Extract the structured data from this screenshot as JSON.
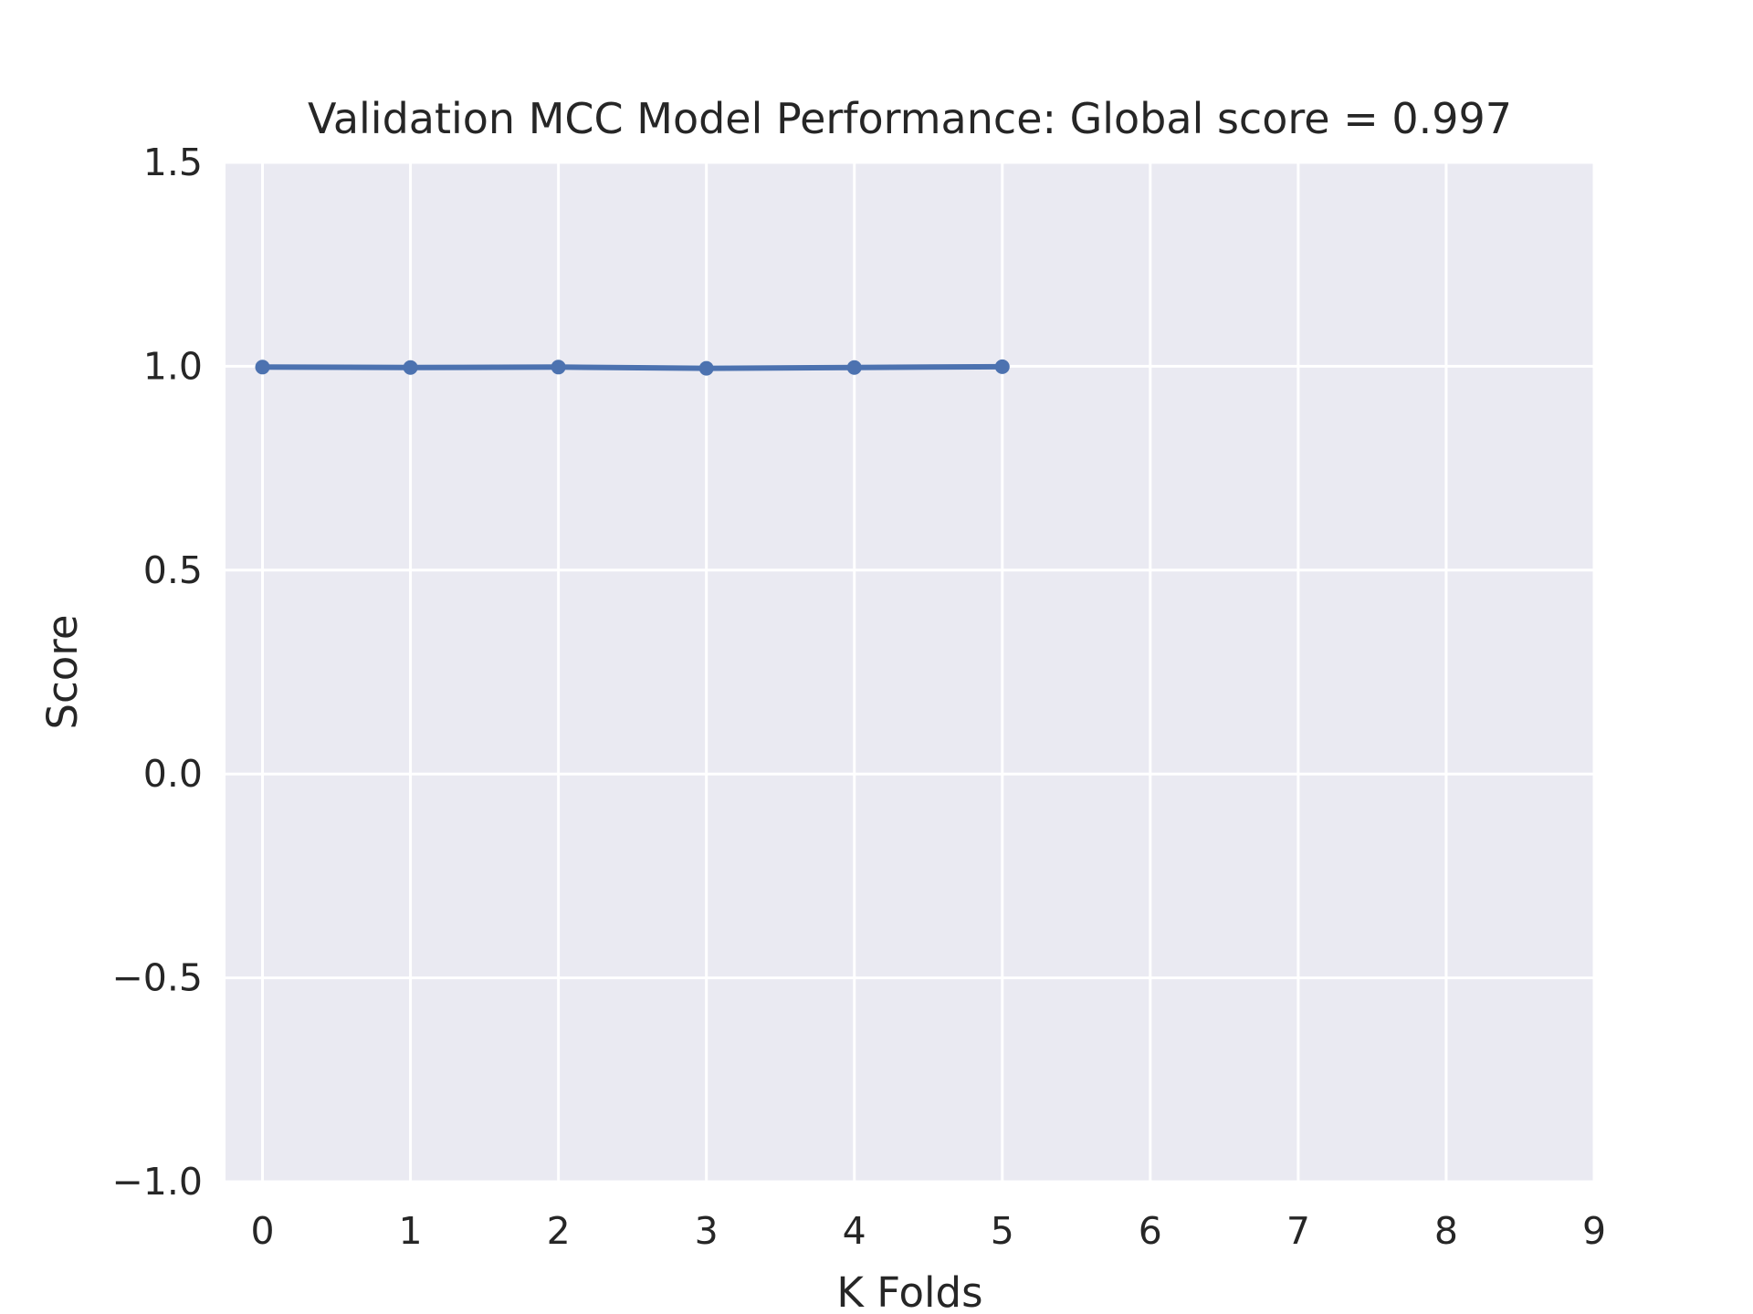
{
  "chart_data": {
    "type": "line",
    "title": "Validation MCC Model Performance: Global score = 0.997",
    "xlabel": "K Folds",
    "ylabel": "Score",
    "xlim": [
      -0.25,
      9
    ],
    "ylim": [
      -1.0,
      1.5
    ],
    "x_ticks": [
      0,
      1,
      2,
      3,
      4,
      5,
      6,
      7,
      8,
      9
    ],
    "x_tick_labels": [
      "0",
      "1",
      "2",
      "3",
      "4",
      "5",
      "6",
      "7",
      "8",
      "9"
    ],
    "y_ticks": [
      -1.0,
      -0.5,
      0.0,
      0.5,
      1.0,
      1.5
    ],
    "y_tick_labels": [
      "−1.0",
      "−0.5",
      "0.0",
      "0.5",
      "1.0",
      "1.5"
    ],
    "grid": true,
    "series": [
      {
        "x": [
          0,
          1,
          2,
          3,
          4,
          5
        ],
        "values": [
          0.998,
          0.997,
          0.998,
          0.995,
          0.997,
          0.999
        ]
      }
    ],
    "colors": {
      "plot_background": "#eaeaf2",
      "grid": "#ffffff",
      "line": "#4c72b0",
      "text": "#262626"
    }
  }
}
